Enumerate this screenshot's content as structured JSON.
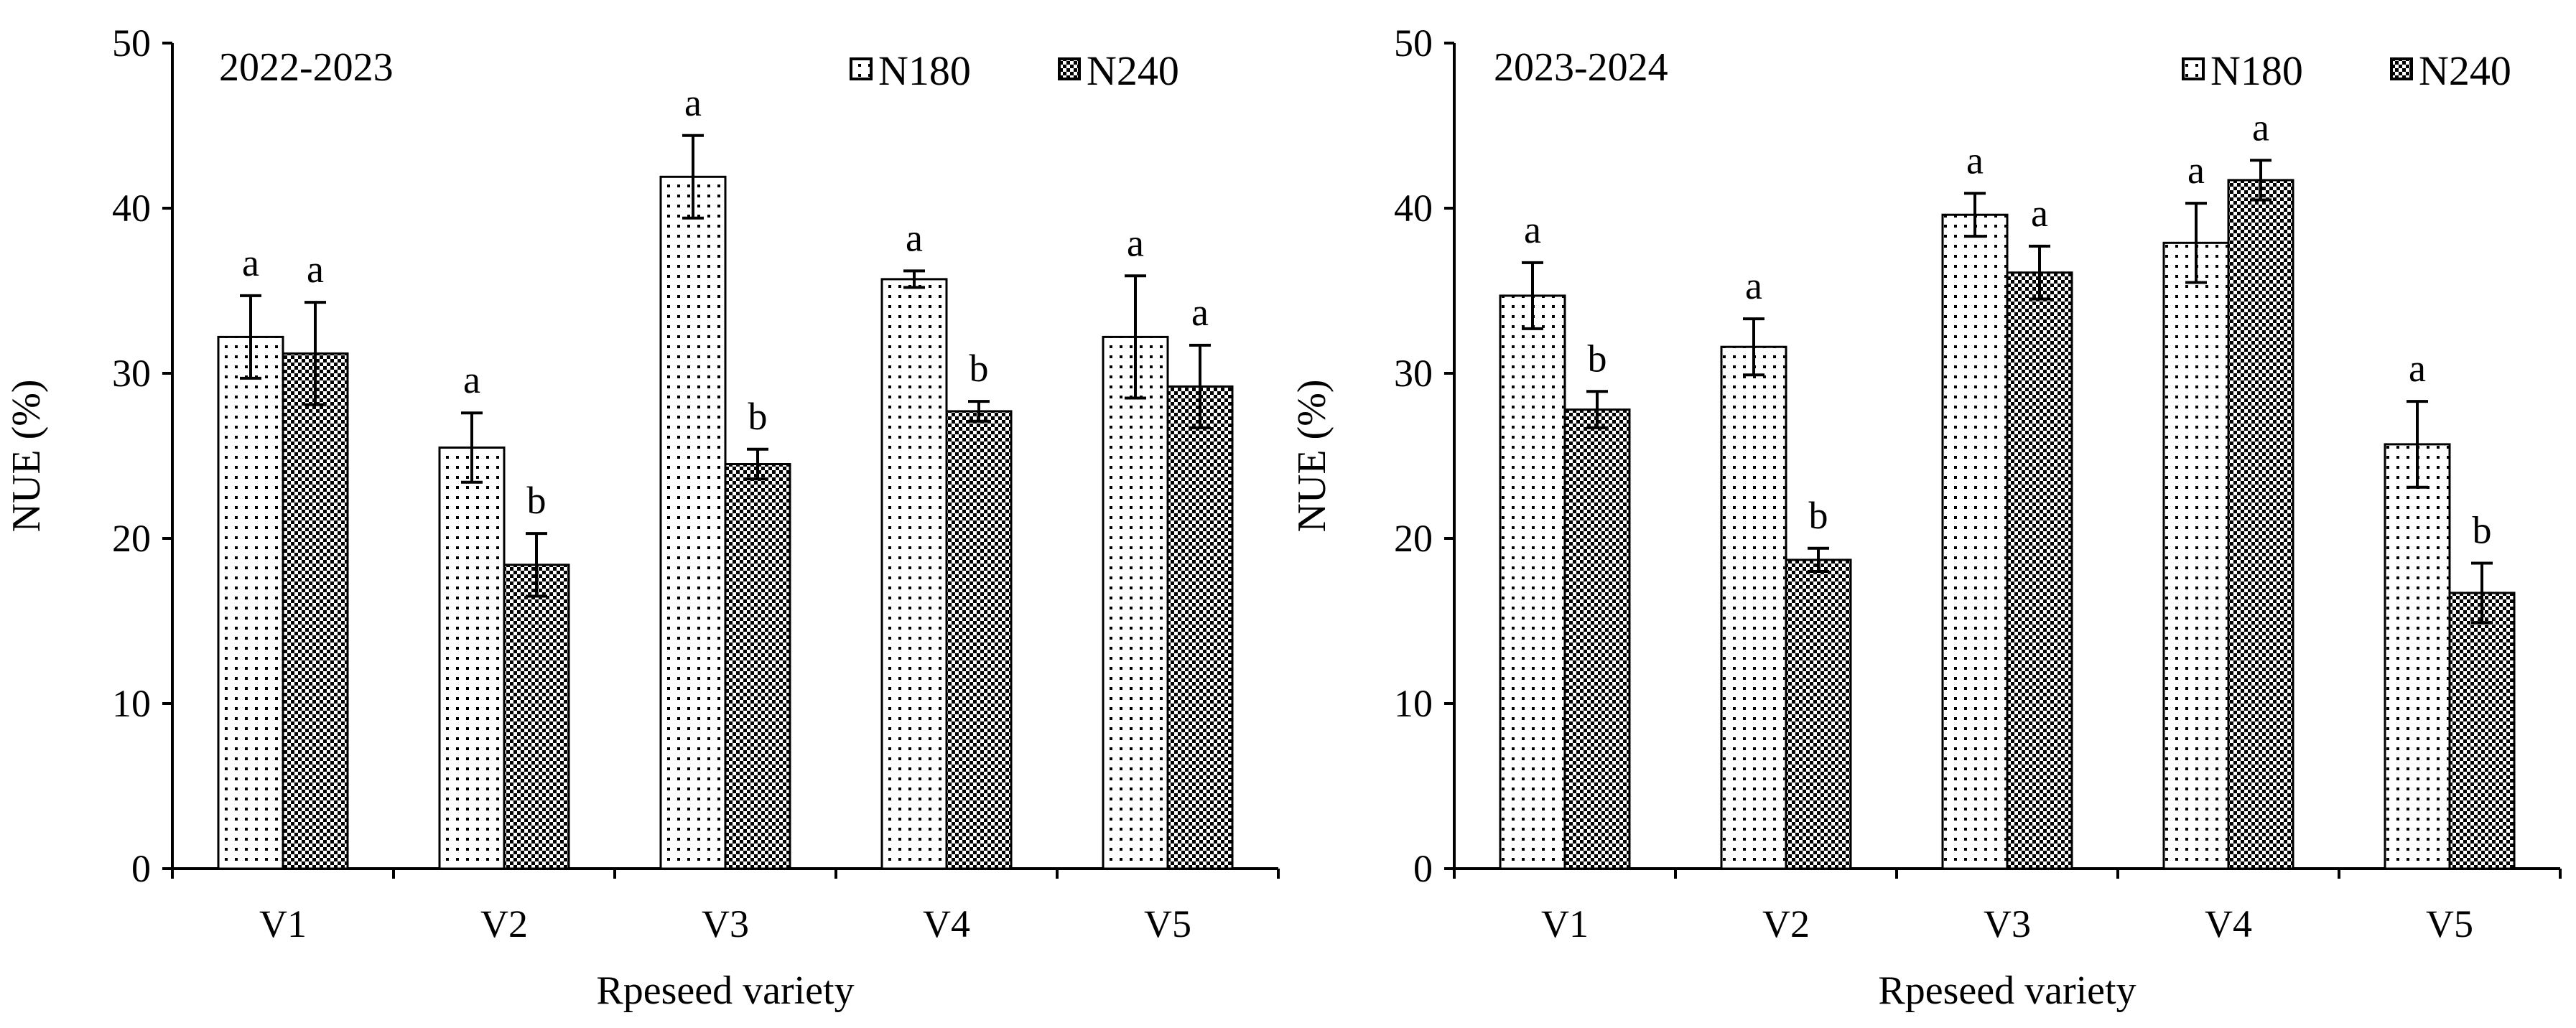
{
  "chart_data": [
    {
      "type": "bar",
      "title": "2022-2023",
      "xlabel": "Rpeseed variety",
      "ylabel": "NUE (%)",
      "ylim": [
        0,
        50
      ],
      "yticks": [
        "0",
        "10",
        "20",
        "30",
        "40",
        "50"
      ],
      "categories": [
        "V1",
        "V2",
        "V3",
        "V4",
        "V5"
      ],
      "series": [
        {
          "name": "N180",
          "values": [
            32.2,
            25.5,
            41.9,
            35.7,
            32.2
          ],
          "errors": [
            2.5,
            2.1,
            2.5,
            0.5,
            3.7
          ],
          "labels": [
            "a",
            "a",
            "a",
            "a",
            "a"
          ]
        },
        {
          "name": "N240",
          "values": [
            31.2,
            18.4,
            24.5,
            27.7,
            29.2
          ],
          "errors": [
            3.1,
            1.9,
            0.9,
            0.6,
            2.5
          ],
          "labels": [
            "a",
            "b",
            "b",
            "b",
            "a"
          ]
        }
      ]
    },
    {
      "type": "bar",
      "title": "2023-2024",
      "xlabel": "Rpeseed variety",
      "ylabel": "NUE (%)",
      "ylim": [
        0,
        50
      ],
      "yticks": [
        "0",
        "10",
        "20",
        "30",
        "40",
        "50"
      ],
      "categories": [
        "V1",
        "V2",
        "V3",
        "V4",
        "V5"
      ],
      "series": [
        {
          "name": "N180",
          "values": [
            34.7,
            31.6,
            39.6,
            37.9,
            25.7
          ],
          "errors": [
            2.0,
            1.7,
            1.3,
            2.4,
            2.6
          ],
          "labels": [
            "a",
            "a",
            "a",
            "a",
            "a"
          ]
        },
        {
          "name": "N240",
          "values": [
            27.8,
            18.7,
            36.1,
            41.7,
            16.7
          ],
          "errors": [
            1.1,
            0.7,
            1.6,
            1.2,
            1.8
          ],
          "labels": [
            "b",
            "b",
            "a",
            "a",
            "b"
          ]
        }
      ]
    }
  ]
}
